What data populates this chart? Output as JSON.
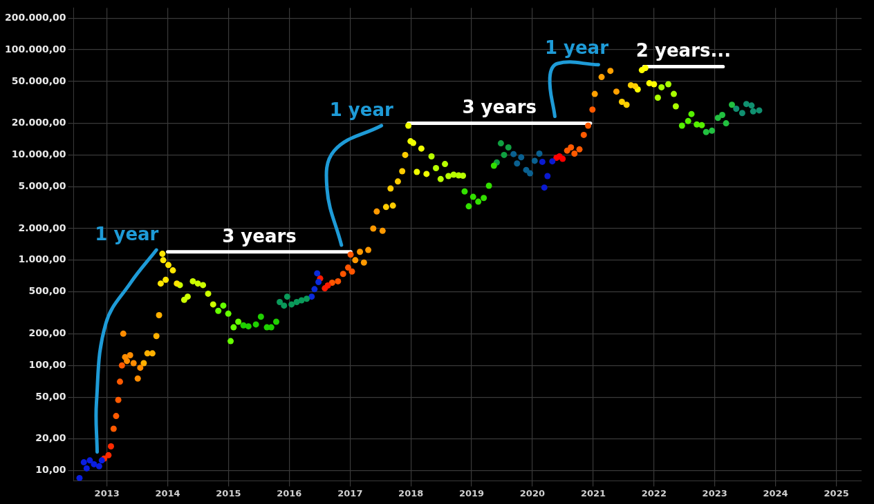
{
  "chart_data": {
    "type": "scatter",
    "log": "y",
    "grid": true,
    "legend": false,
    "marker": "circle",
    "xlim": [
      "2012-06-15",
      "2025-06-01"
    ],
    "xticks": [
      "2013",
      "2014",
      "2015",
      "2016",
      "2017",
      "2018",
      "2019",
      "2020",
      "2021",
      "2022",
      "2023",
      "2024",
      "2025"
    ],
    "ylim": [
      8,
      250000
    ],
    "yticks": [
      {
        "value": 10,
        "label": "10,00"
      },
      {
        "value": 20,
        "label": "20,00"
      },
      {
        "value": 50,
        "label": "50,00"
      },
      {
        "value": 100,
        "label": "100,00"
      },
      {
        "value": 200,
        "label": "200,00"
      },
      {
        "value": 500,
        "label": "500,00"
      },
      {
        "value": 1000,
        "label": "1.000,00"
      },
      {
        "value": 2000,
        "label": "2.000,00"
      },
      {
        "value": 5000,
        "label": "5.000,00"
      },
      {
        "value": 10000,
        "label": "10.000,00"
      },
      {
        "value": 20000,
        "label": "20.000,00"
      },
      {
        "value": 50000,
        "label": "50.000,00"
      },
      {
        "value": 100000,
        "label": "100.000,00"
      },
      {
        "value": 200000,
        "label": "200.000,00"
      }
    ],
    "series": [
      {
        "color": "#0a1ee0",
        "x": [
          "2012-07-20",
          "2012-08-15",
          "2012-09-01",
          "2012-09-20",
          "2012-10-15",
          "2012-11-15",
          "2012-12-01"
        ],
        "values": [
          8.5,
          12,
          10.5,
          12.5,
          11.5,
          11,
          12.5
        ]
      },
      {
        "color": "#ff2a00",
        "x": [
          "2012-12-15",
          "2013-01-10",
          "2013-01-25"
        ],
        "values": [
          13,
          14,
          17
        ]
      },
      {
        "color": "#ff5a00",
        "x": [
          "2013-02-10",
          "2013-02-25",
          "2013-03-10",
          "2013-03-20",
          "2013-04-01"
        ],
        "values": [
          25,
          33,
          47,
          70,
          100
        ]
      },
      {
        "color": "#ff8c00",
        "x": [
          "2013-04-09",
          "2013-04-20",
          "2013-05-01",
          "2013-05-20",
          "2013-06-10",
          "2013-07-05",
          "2013-07-20"
        ],
        "values": [
          200,
          120,
          110,
          125,
          105,
          75,
          95
        ]
      },
      {
        "color": "#ffb000",
        "x": [
          "2013-08-10",
          "2013-09-01",
          "2013-10-01",
          "2013-10-25",
          "2013-11-10"
        ],
        "values": [
          105,
          130,
          130,
          190,
          300
        ]
      },
      {
        "color": "#ffe600",
        "x": [
          "2013-11-20",
          "2013-11-30",
          "2013-12-05",
          "2013-12-20",
          "2014-01-05",
          "2014-02-01",
          "2014-02-25"
        ],
        "values": [
          600,
          1150,
          1000,
          650,
          900,
          800,
          600
        ]
      },
      {
        "color": "#ccff00",
        "x": [
          "2014-03-15",
          "2014-04-10",
          "2014-05-01",
          "2014-06-01",
          "2014-07-01",
          "2014-08-01",
          "2014-09-01",
          "2014-10-01"
        ],
        "values": [
          580,
          420,
          450,
          630,
          600,
          580,
          480,
          380
        ]
      },
      {
        "color": "#66ff00",
        "x": [
          "2014-11-01",
          "2014-12-01",
          "2014-12-31",
          "2015-01-14",
          "2015-02-01",
          "2015-03-01"
        ],
        "values": [
          330,
          370,
          310,
          170,
          230,
          260
        ]
      },
      {
        "color": "#1fd000",
        "x": [
          "2015-04-01",
          "2015-05-01",
          "2015-06-15",
          "2015-07-15",
          "2015-08-20",
          "2015-09-15",
          "2015-10-15"
        ],
        "values": [
          240,
          235,
          245,
          290,
          230,
          230,
          260
        ]
      },
      {
        "color": "#0a9a5a",
        "x": [
          "2015-11-05",
          "2015-12-01",
          "2015-12-20",
          "2016-01-15",
          "2016-02-15",
          "2016-03-15",
          "2016-04-15"
        ],
        "values": [
          400,
          370,
          450,
          380,
          400,
          415,
          430
        ]
      },
      {
        "color": "#0b2bd9",
        "x": [
          "2016-05-15",
          "2016-06-01",
          "2016-06-17",
          "2016-06-25"
        ],
        "values": [
          450,
          530,
          750,
          620
        ]
      },
      {
        "color": "#ff1a00",
        "x": [
          "2016-07-05",
          "2016-08-02",
          "2016-08-20"
        ],
        "values": [
          670,
          540,
          575
        ]
      },
      {
        "color": "#ff5500",
        "x": [
          "2016-09-15",
          "2016-10-20",
          "2016-11-20",
          "2016-12-20",
          "2017-01-04",
          "2017-01-12"
        ],
        "values": [
          610,
          630,
          740,
          850,
          1130,
          780
        ]
      },
      {
        "color": "#ff9900",
        "x": [
          "2017-02-01",
          "2017-03-01",
          "2017-03-25",
          "2017-04-20",
          "2017-05-20",
          "2017-06-10",
          "2017-07-15"
        ],
        "values": [
          1000,
          1200,
          950,
          1250,
          2000,
          2900,
          1900
        ]
      },
      {
        "color": "#ffcc00",
        "x": [
          "2017-08-05",
          "2017-09-01",
          "2017-09-15",
          "2017-10-15",
          "2017-11-10",
          "2017-11-28"
        ],
        "values": [
          3200,
          4800,
          3300,
          5600,
          7000,
          10000
        ]
      },
      {
        "color": "#f0ff00",
        "x": [
          "2017-12-17",
          "2017-12-30",
          "2018-01-15",
          "2018-02-06",
          "2018-03-05",
          "2018-04-05"
        ],
        "values": [
          19000,
          13500,
          13000,
          6900,
          11500,
          6600
        ]
      },
      {
        "color": "#b8ff00",
        "x": [
          "2018-05-05",
          "2018-06-01",
          "2018-06-29",
          "2018-07-25",
          "2018-08-15",
          "2018-09-15",
          "2018-10-15",
          "2018-11-10"
        ],
        "values": [
          9700,
          7500,
          5900,
          8200,
          6300,
          6500,
          6400,
          6350
        ]
      },
      {
        "color": "#33e000",
        "x": [
          "2018-11-20",
          "2018-12-15",
          "2019-01-10",
          "2019-02-10",
          "2019-03-15",
          "2019-04-15",
          "2019-05-15"
        ],
        "values": [
          4500,
          3250,
          4000,
          3600,
          3900,
          5100,
          7900
        ]
      },
      {
        "color": "#10a040",
        "x": [
          "2019-06-01",
          "2019-06-26",
          "2019-07-15",
          "2019-08-10"
        ],
        "values": [
          8500,
          12900,
          10000,
          11800
        ]
      },
      {
        "color": "#0a6090",
        "x": [
          "2019-09-10",
          "2019-10-01",
          "2019-10-26",
          "2019-11-25",
          "2019-12-18",
          "2020-01-15",
          "2020-02-12"
        ],
        "values": [
          10200,
          8300,
          9500,
          7200,
          6700,
          8800,
          10300
        ]
      },
      {
        "color": "#0a1ad0",
        "x": [
          "2020-03-01",
          "2020-03-13",
          "2020-04-01",
          "2020-04-30"
        ],
        "values": [
          8600,
          4900,
          6300,
          8700
        ]
      },
      {
        "color": "#ff0000",
        "x": [
          "2020-05-25",
          "2020-06-12",
          "2020-07-01"
        ],
        "values": [
          9400,
          9700,
          9200
        ]
      },
      {
        "color": "#ff5a00",
        "x": [
          "2020-07-28",
          "2020-08-20",
          "2020-09-10",
          "2020-10-10",
          "2020-11-05",
          "2020-12-01",
          "2020-12-27"
        ],
        "values": [
          11000,
          11800,
          10300,
          11300,
          15500,
          19000,
          27000
        ]
      },
      {
        "color": "#ffa000",
        "x": [
          "2021-01-10",
          "2021-02-20",
          "2021-04-14",
          "2021-05-20"
        ],
        "values": [
          38000,
          55000,
          63000,
          40000
        ]
      },
      {
        "color": "#ffd000",
        "x": [
          "2021-06-22",
          "2021-07-20",
          "2021-08-15",
          "2021-09-10"
        ],
        "values": [
          32000,
          30000,
          46000,
          45000
        ]
      },
      {
        "color": "#ffff00",
        "x": [
          "2021-09-25",
          "2021-10-20",
          "2021-11-10",
          "2021-12-04",
          "2022-01-01"
        ],
        "values": [
          42000,
          64000,
          67000,
          48000,
          47000
        ]
      },
      {
        "color": "#aaff00",
        "x": [
          "2022-01-24",
          "2022-02-15",
          "2022-03-28",
          "2022-04-30",
          "2022-05-12"
        ],
        "values": [
          35000,
          44000,
          47000,
          38000,
          29000
        ]
      },
      {
        "color": "#55f000",
        "x": [
          "2022-06-18",
          "2022-07-25",
          "2022-08-14",
          "2022-09-15",
          "2022-10-15"
        ],
        "values": [
          19000,
          21000,
          24500,
          19500,
          19200
        ]
      },
      {
        "color": "#22c040",
        "x": [
          "2022-11-10",
          "2022-12-15",
          "2023-01-20",
          "2023-02-15",
          "2023-03-10",
          "2023-04-14"
        ],
        "values": [
          16500,
          17000,
          22500,
          24000,
          20000,
          30000
        ]
      },
      {
        "color": "#109070",
        "x": [
          "2023-05-10",
          "2023-06-15",
          "2023-07-10",
          "2023-08-10",
          "2023-08-20",
          "2023-09-25"
        ],
        "values": [
          27500,
          25000,
          30500,
          29500,
          26000,
          26500
        ]
      },
      {
        "type": "line",
        "marker": "none",
        "name": "1 year",
        "color": "#1e9bd7",
        "x": [
          "2012-11-03",
          "2012-10-30",
          "2012-12-25",
          "2013-05-20",
          "2013-10-25"
        ],
        "values": [
          15,
          45,
          250,
          600,
          1250
        ]
      },
      {
        "type": "line",
        "marker": "none",
        "name": "3 years",
        "color": "#ffffff",
        "x": [
          "2014-01-01",
          "2017-01-05"
        ],
        "values": [
          1200,
          1200
        ]
      },
      {
        "type": "line",
        "marker": "none",
        "name": "1 year",
        "color": "#1e9bd7",
        "x": [
          "2016-11-10",
          "2016-08-15",
          "2016-09-28",
          "2017-07-08"
        ],
        "values": [
          1390,
          4800,
          11000,
          19000
        ]
      },
      {
        "type": "line",
        "marker": "none",
        "name": "3 years",
        "color": "#ffffff",
        "x": [
          "2017-12-17",
          "2020-12-15"
        ],
        "values": [
          20000,
          20000
        ]
      },
      {
        "type": "line",
        "marker": "none",
        "name": "1 year",
        "color": "#1e9bd7",
        "x": [
          "2020-05-15",
          "2020-04-15",
          "2020-06-01",
          "2021-02-01"
        ],
        "values": [
          23300,
          54000,
          74000,
          72000
        ]
      },
      {
        "type": "line",
        "marker": "none",
        "name": "2 years...",
        "color": "#ffffff",
        "x": [
          "2021-11-01",
          "2023-02-20"
        ],
        "values": [
          69000,
          69000
        ]
      }
    ]
  }
}
